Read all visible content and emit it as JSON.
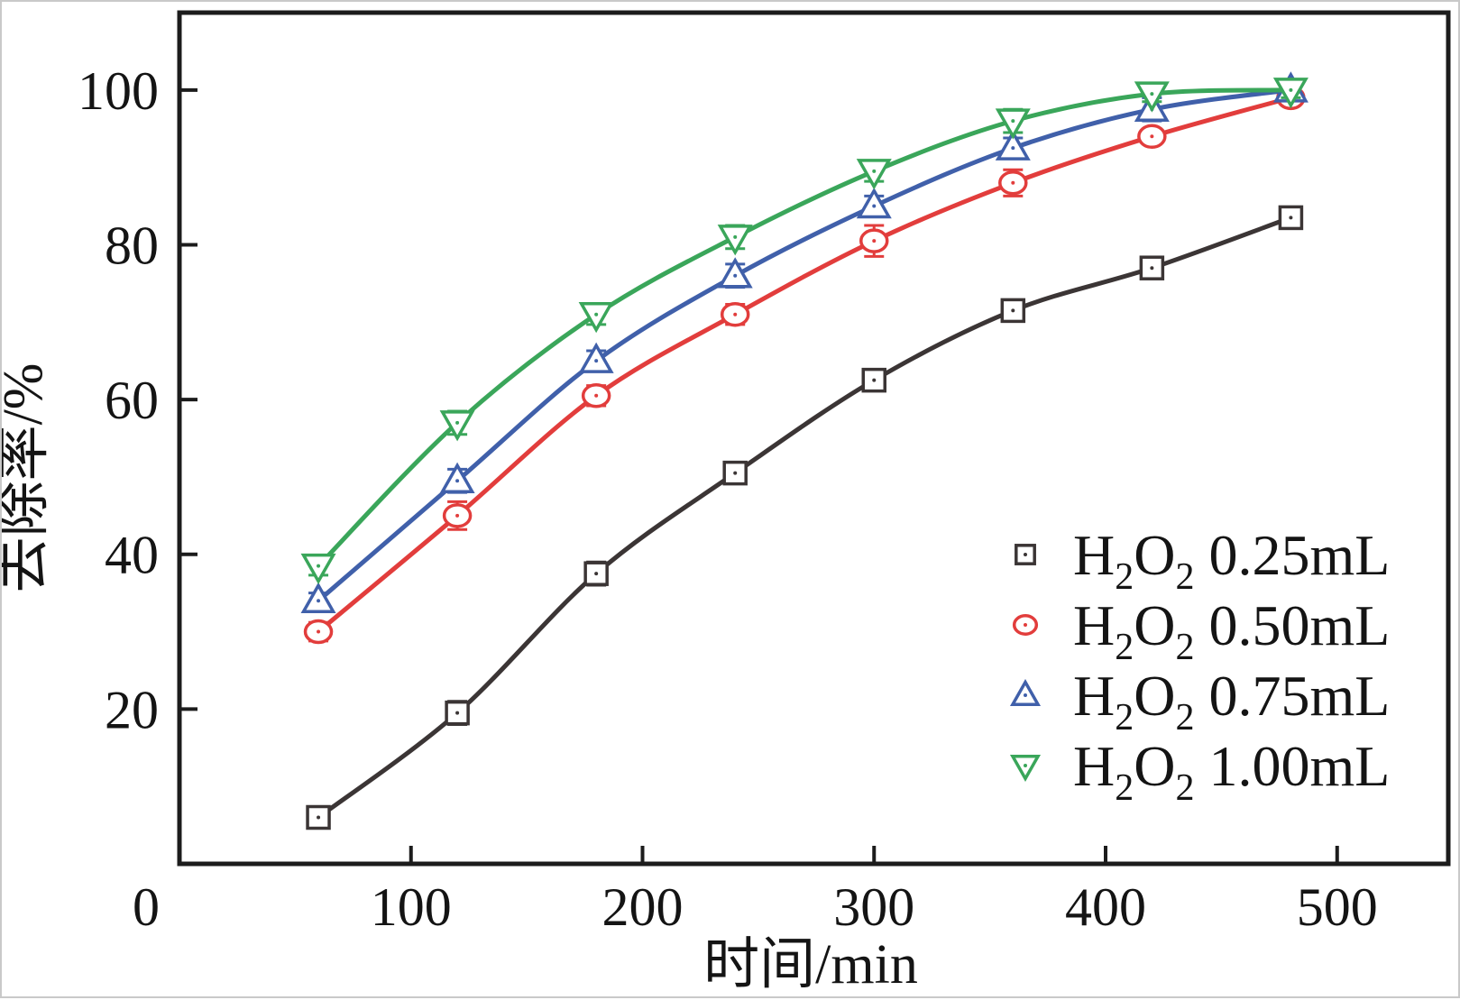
{
  "figure": {
    "background": "#ffffff",
    "border_color": "#c9c9c9",
    "frame_color": "#1c1c1c"
  },
  "chart_data": {
    "type": "line",
    "title": "",
    "xlabel": "时间/min",
    "ylabel": "去除率/%",
    "xlim": [
      0,
      548
    ],
    "ylim": [
      0,
      110
    ],
    "xticks": [
      0,
      100,
      200,
      300,
      400,
      500
    ],
    "yticks": [
      20,
      40,
      60,
      80,
      100
    ],
    "grid": false,
    "legend_position": "lower-right",
    "x": [
      60,
      120,
      180,
      240,
      300,
      360,
      420,
      480
    ],
    "series": [
      {
        "name": "H2O2 0.25mL",
        "marker": "square",
        "color": "#3b3535",
        "values": [
          6,
          19.5,
          37.5,
          50.5,
          62.5,
          71.5,
          77,
          83.5
        ],
        "errors": [
          0.8,
          1.5,
          1.5,
          1.0,
          1.0,
          1.3,
          1.3,
          1.2
        ]
      },
      {
        "name": "H2O2 0.50mL",
        "marker": "circle",
        "color": "#e23d3c",
        "values": [
          30,
          45,
          60.5,
          71,
          80.5,
          88,
          94,
          99
        ],
        "errors": [
          1.2,
          1.8,
          1.3,
          1.3,
          2.0,
          1.7,
          1.0,
          1.0
        ]
      },
      {
        "name": "H2O2 0.75mL",
        "marker": "triangle-up",
        "color": "#4060aa",
        "values": [
          34,
          49.5,
          65,
          76,
          85,
          92.5,
          97.5,
          100
        ],
        "errors": [
          1.0,
          1.5,
          1.3,
          1.5,
          1.3,
          1.3,
          1.5,
          1.0
        ]
      },
      {
        "name": "H2O2 1.00mL",
        "marker": "triangle-down",
        "color": "#3aa65a",
        "values": [
          38.5,
          57,
          71,
          81,
          89.5,
          96,
          99.5,
          100
        ],
        "errors": [
          1.2,
          1.5,
          1.3,
          1.5,
          1.3,
          1.5,
          1.0,
          1.0
        ]
      }
    ]
  }
}
